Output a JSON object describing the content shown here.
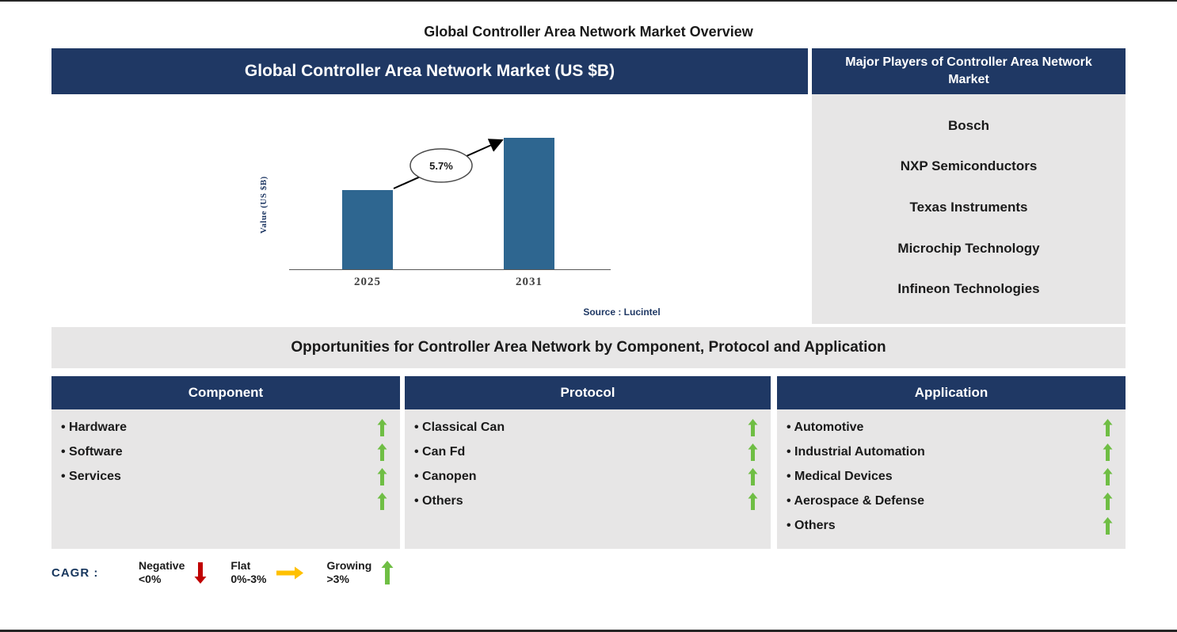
{
  "page": {
    "title": "Global Controller Area Network Market Overview",
    "source": "Source : Lucintel"
  },
  "chart_panel": {
    "header": "Global Controller Area Network Market (US $B)"
  },
  "chart_data": {
    "type": "bar",
    "title": "Global Controller Area Network Market (US $B)",
    "categories": [
      "2025",
      "2031"
    ],
    "values": [
      100,
      165
    ],
    "note": "No numeric axis ticks shown; values are relative bar heights read from pixels",
    "ylabel": "Value (US $B)",
    "xlabel": "",
    "cagr_label": "5.7%",
    "grid": false,
    "legend_shown": false
  },
  "players_panel": {
    "header": "Major Players of Controller Area Network Market",
    "players": [
      "Bosch",
      "NXP Semiconductors",
      "Texas Instruments",
      "Microchip Technology",
      "Infineon Technologies"
    ]
  },
  "opportunities": {
    "header": "Opportunities for Controller Area Network by Component, Protocol and Application",
    "columns": [
      {
        "header": "Component",
        "items": [
          "Hardware",
          "Software",
          "Services",
          ""
        ]
      },
      {
        "header": "Protocol",
        "items": [
          "Classical Can",
          "Can Fd",
          "Canopen",
          "Others"
        ]
      },
      {
        "header": "Application",
        "items": [
          "Automotive",
          "Industrial Automation",
          "Medical Devices",
          "Aerospace & Defense",
          "Others"
        ]
      }
    ]
  },
  "legend": {
    "prefix": "CAGR :",
    "entries": [
      {
        "label": "Negative",
        "range": "<0%",
        "direction": "down"
      },
      {
        "label": "Flat",
        "range": "0%-3%",
        "direction": "right"
      },
      {
        "label": "Growing",
        "range": ">3%",
        "direction": "up"
      }
    ]
  },
  "colors": {
    "navy": "#1F3864",
    "gray": "#E7E6E6",
    "bar": "#2E6690",
    "green": "#6FBE44",
    "red": "#C00000",
    "yellow": "#FFC000",
    "text": "#1A1A1A"
  }
}
